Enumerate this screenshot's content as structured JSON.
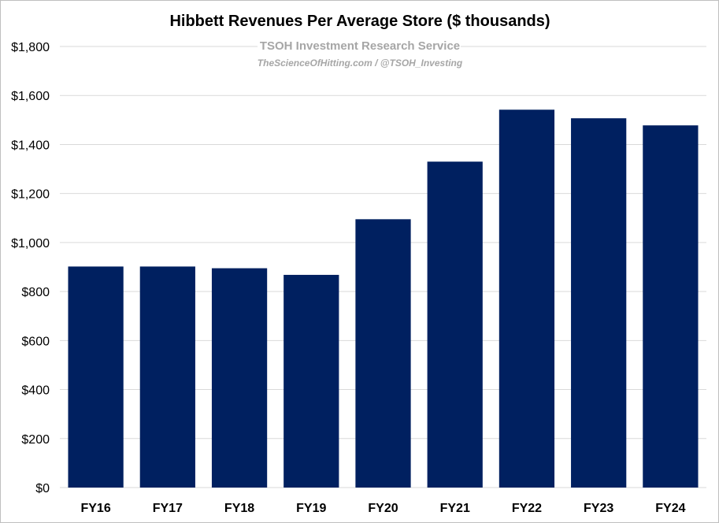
{
  "chart_data": {
    "type": "bar",
    "title": "Hibbett Revenues Per Average Store ($ thousands)",
    "watermark": {
      "line1": "TSOH Investment Research Service",
      "line2": "TheScienceOfHitting.com / @TSOH_Investing"
    },
    "categories": [
      "FY16",
      "FY17",
      "FY18",
      "FY19",
      "FY20",
      "FY21",
      "FY22",
      "FY23",
      "FY24"
    ],
    "values": [
      902,
      902,
      895,
      868,
      1095,
      1330,
      1542,
      1507,
      1478
    ],
    "ylim": [
      0,
      1800
    ],
    "yticks": [
      0,
      200,
      400,
      600,
      800,
      1000,
      1200,
      1400,
      1600,
      1800
    ],
    "ytick_labels": [
      "$0",
      "$200",
      "$400",
      "$600",
      "$800",
      "$1,000",
      "$1,200",
      "$1,400",
      "$1,600",
      "$1,800"
    ],
    "xlabel": "",
    "ylabel": "",
    "grid": true,
    "bar_color": "#002060"
  }
}
